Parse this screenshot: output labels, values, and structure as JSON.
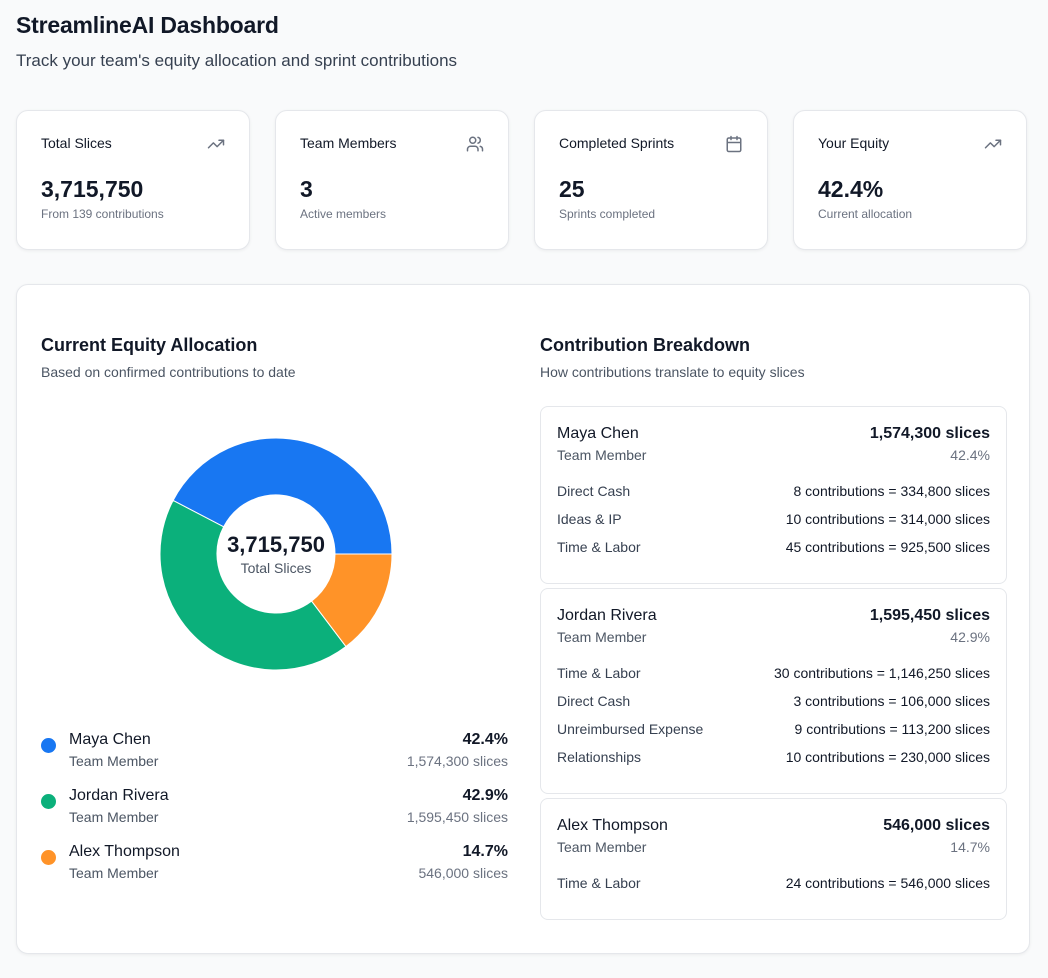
{
  "header": {
    "title": "StreamlineAI Dashboard",
    "subtitle": "Track your team's equity allocation and sprint contributions"
  },
  "stats": [
    {
      "label": "Total Slices",
      "value": "3,715,750",
      "sub": "From 139 contributions",
      "icon": "trending-up-icon"
    },
    {
      "label": "Team Members",
      "value": "3",
      "sub": "Active members",
      "icon": "users-icon"
    },
    {
      "label": "Completed Sprints",
      "value": "25",
      "sub": "Sprints completed",
      "icon": "calendar-icon"
    },
    {
      "label": "Your Equity",
      "value": "42.4%",
      "sub": "Current allocation",
      "icon": "trending-up-icon"
    }
  ],
  "allocation": {
    "title": "Current Equity Allocation",
    "subtitle": "Based on confirmed contributions to date",
    "center_value": "3,715,750",
    "center_label": "Total Slices"
  },
  "chart_data": {
    "type": "pie",
    "title": "Current Equity Allocation",
    "categories": [
      "Maya Chen",
      "Jordan Rivera",
      "Alex Thompson"
    ],
    "values": [
      1574300,
      1595450,
      546000
    ],
    "colors": [
      "#1877f2",
      "#0bb07b",
      "#ff9328"
    ]
  },
  "legend": [
    {
      "name": "Maya Chen",
      "role": "Team Member",
      "pct": "42.4%",
      "slices": "1,574,300 slices",
      "color": "#1877f2"
    },
    {
      "name": "Jordan Rivera",
      "role": "Team Member",
      "pct": "42.9%",
      "slices": "1,595,450 slices",
      "color": "#0bb07b"
    },
    {
      "name": "Alex Thompson",
      "role": "Team Member",
      "pct": "14.7%",
      "slices": "546,000 slices",
      "color": "#ff9328"
    }
  ],
  "breakdown": {
    "title": "Contribution Breakdown",
    "subtitle": "How contributions translate to equity slices",
    "members": [
      {
        "name": "Maya Chen",
        "role": "Team Member",
        "total": "1,574,300 slices",
        "pct": "42.4%",
        "rows": [
          {
            "type": "Direct Cash",
            "calc": "8 contributions = 334,800 slices"
          },
          {
            "type": "Ideas & IP",
            "calc": "10 contributions = 314,000 slices"
          },
          {
            "type": "Time & Labor",
            "calc": "45 contributions = 925,500 slices"
          }
        ]
      },
      {
        "name": "Jordan Rivera",
        "role": "Team Member",
        "total": "1,595,450 slices",
        "pct": "42.9%",
        "rows": [
          {
            "type": "Time & Labor",
            "calc": "30 contributions = 1,146,250 slices"
          },
          {
            "type": "Direct Cash",
            "calc": "3 contributions = 106,000 slices"
          },
          {
            "type": "Unreimbursed Expense",
            "calc": "9 contributions = 113,200 slices"
          },
          {
            "type": "Relationships",
            "calc": "10 contributions = 230,000 slices"
          }
        ]
      },
      {
        "name": "Alex Thompson",
        "role": "Team Member",
        "total": "546,000 slices",
        "pct": "14.7%",
        "rows": [
          {
            "type": "Time & Labor",
            "calc": "24 contributions = 546,000 slices"
          }
        ]
      }
    ]
  }
}
